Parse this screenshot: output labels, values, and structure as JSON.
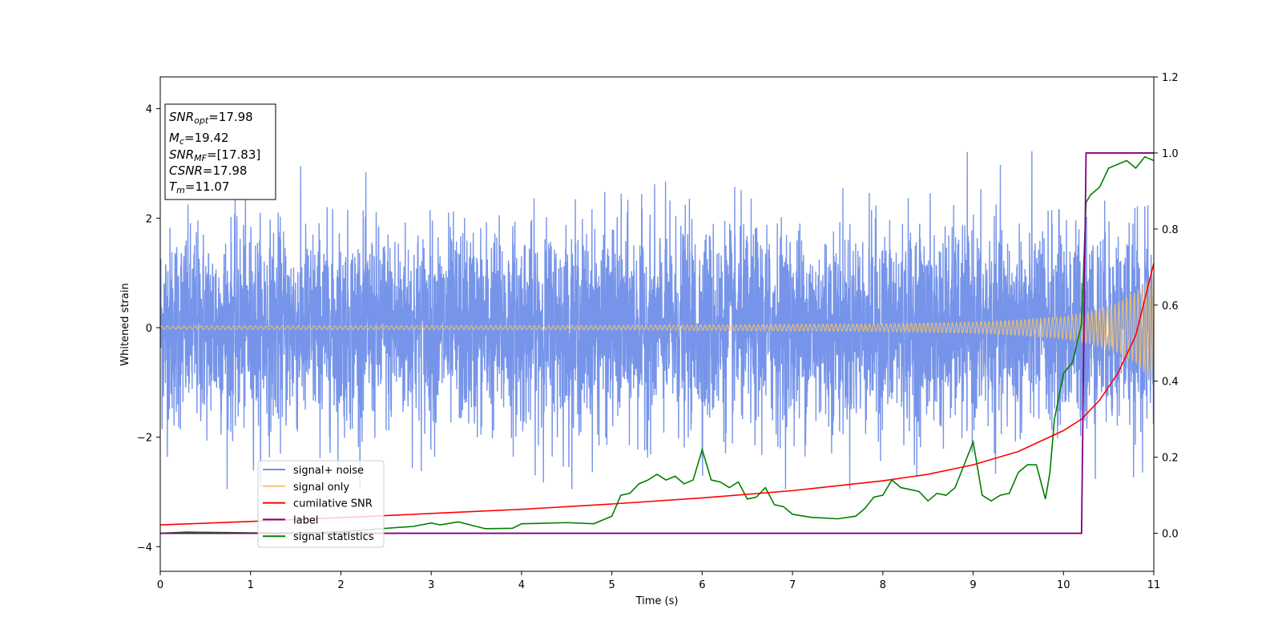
{
  "chart_data": {
    "type": "line",
    "xlabel": "Time (s)",
    "ylabel": "Whitened strain",
    "xlim": [
      0,
      11
    ],
    "ylim": [
      -4.45,
      4.58
    ],
    "y2lim": [
      -0.1,
      1.2
    ],
    "xticks": [
      0,
      1,
      2,
      3,
      4,
      5,
      6,
      7,
      8,
      9,
      10,
      11
    ],
    "yticks": [
      -4,
      -2,
      0,
      2,
      4
    ],
    "y2ticks": [
      0.0,
      0.2,
      0.4,
      0.6,
      0.8,
      1.0,
      1.2
    ],
    "y2ticklabels": [
      "0.0",
      "0.2",
      "0.4",
      "0.6",
      "0.8",
      "1.0",
      "1.2"
    ],
    "info_box": [
      {
        "sym": "SNR",
        "sub": "opt",
        "value": "=17.98"
      },
      {
        "sym": "M",
        "sub": "c",
        "value": "=19.42"
      },
      {
        "sym": "SNR",
        "sub": "MF",
        "value": "=[17.83]"
      },
      {
        "sym": "CSNR",
        "sub": "",
        "value": "=17.98"
      },
      {
        "sym": "T",
        "sub": "m",
        "value": "=11.07"
      }
    ],
    "legend": {
      "placement": "lower-left",
      "entries": [
        {
          "label": "signal+ noise",
          "color": "#6f8ee8"
        },
        {
          "label": "signal only",
          "color": "#f5c46b"
        },
        {
          "label": "cumilative SNR",
          "color": "#ff0000"
        },
        {
          "label": "label",
          "color": "#800080"
        },
        {
          "label": "signal statistics",
          "color": "#008000"
        }
      ]
    },
    "series": [
      {
        "name": "signal+ noise",
        "axis": "left",
        "color": "#6f8ee8",
        "kind": "noise",
        "amplitude_std": 0.9,
        "typical_range": [
          -2.4,
          2.4
        ]
      },
      {
        "name": "signal only",
        "axis": "left",
        "color": "#f5c46b",
        "kind": "chirp",
        "envelope": {
          "x": [
            0,
            5,
            8,
            9,
            9.5,
            10,
            10.3,
            10.6,
            10.8,
            11
          ],
          "y": [
            0.03,
            0.04,
            0.07,
            0.1,
            0.14,
            0.2,
            0.3,
            0.45,
            0.65,
            1.0
          ]
        }
      },
      {
        "name": "cumilative SNR",
        "axis": "right",
        "x": [
          0,
          1,
          2,
          3,
          4,
          5,
          6,
          7,
          8,
          8.5,
          9,
          9.5,
          10,
          10.2,
          10.4,
          10.6,
          10.8,
          11
        ],
        "y": [
          0.022,
          0.031,
          0.041,
          0.052,
          0.063,
          0.077,
          0.093,
          0.112,
          0.138,
          0.155,
          0.18,
          0.215,
          0.27,
          0.3,
          0.35,
          0.42,
          0.52,
          0.71
        ]
      },
      {
        "name": "label",
        "axis": "right",
        "x": [
          0,
          10.2,
          10.25,
          11
        ],
        "y": [
          0,
          0,
          1,
          1
        ]
      },
      {
        "name": "signal statistics",
        "axis": "right",
        "x": [
          0,
          0.3,
          1,
          1.5,
          2,
          2.5,
          2.8,
          3,
          3.1,
          3.3,
          3.6,
          3.9,
          4,
          4.2,
          4.5,
          4.8,
          5,
          5.1,
          5.2,
          5.3,
          5.4,
          5.5,
          5.6,
          5.7,
          5.8,
          5.9,
          6.0,
          6.1,
          6.2,
          6.3,
          6.4,
          6.5,
          6.6,
          6.7,
          6.8,
          6.9,
          7.0,
          7.2,
          7.5,
          7.7,
          7.8,
          7.9,
          8.0,
          8.1,
          8.2,
          8.3,
          8.4,
          8.5,
          8.6,
          8.7,
          8.8,
          8.9,
          9.0,
          9.1,
          9.2,
          9.3,
          9.4,
          9.5,
          9.6,
          9.7,
          9.8,
          9.85,
          9.9,
          10.0,
          10.1,
          10.2,
          10.25,
          10.3,
          10.4,
          10.5,
          10.6,
          10.7,
          10.8,
          10.9,
          11.0
        ],
        "y": [
          0,
          0.003,
          0.001,
          0.0,
          0.004,
          0.013,
          0.018,
          0.027,
          0.022,
          0.03,
          0.012,
          0.013,
          0.025,
          0.026,
          0.028,
          0.025,
          0.045,
          0.1,
          0.105,
          0.13,
          0.14,
          0.155,
          0.14,
          0.15,
          0.13,
          0.14,
          0.22,
          0.14,
          0.135,
          0.12,
          0.135,
          0.09,
          0.095,
          0.12,
          0.075,
          0.07,
          0.05,
          0.042,
          0.038,
          0.045,
          0.065,
          0.095,
          0.1,
          0.14,
          0.12,
          0.115,
          0.11,
          0.085,
          0.105,
          0.1,
          0.12,
          0.18,
          0.24,
          0.1,
          0.085,
          0.1,
          0.105,
          0.16,
          0.18,
          0.18,
          0.09,
          0.16,
          0.3,
          0.42,
          0.45,
          0.55,
          0.87,
          0.89,
          0.91,
          0.96,
          0.97,
          0.98,
          0.96,
          0.99,
          0.98
        ]
      }
    ]
  }
}
